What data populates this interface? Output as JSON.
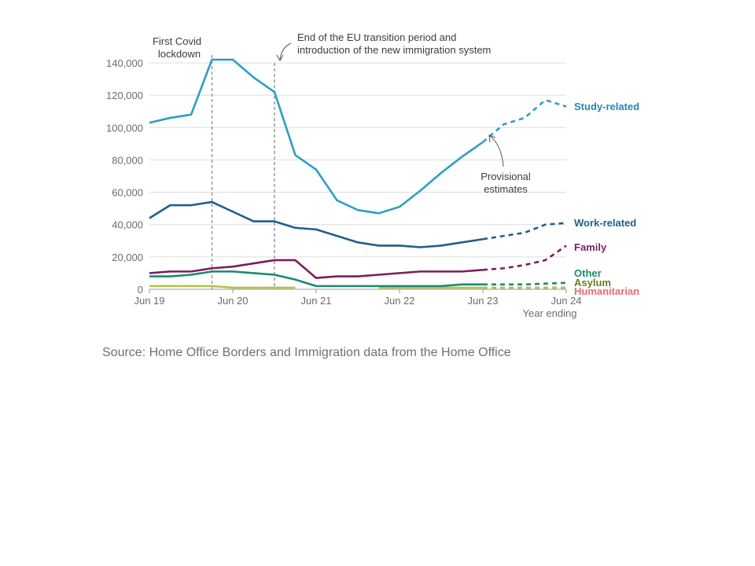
{
  "chart_data": {
    "type": "line",
    "x": [
      "Jun 19",
      "Sep 19",
      "Dec 19",
      "Mar 20",
      "Jun 20",
      "Sep 20",
      "Dec 20",
      "Mar 21",
      "Jun 21",
      "Sep 21",
      "Dec 21",
      "Mar 22",
      "Jun 22",
      "Sep 22",
      "Dec 22",
      "Mar 23",
      "Jun 23",
      "Sep 23",
      "Dec 23",
      "Mar 24",
      "Jun 24"
    ],
    "x_tick_labels": [
      "Jun 19",
      "Jun 20",
      "Jun 21",
      "Jun 22",
      "Jun 23",
      "Jun 24"
    ],
    "xlabel": "Year ending",
    "ylabel": "",
    "ylim": [
      0,
      140000
    ],
    "y_tick_labels": [
      "0",
      "20,000",
      "40,000",
      "60,000",
      "80,000",
      "100,000",
      "120,000",
      "140,000"
    ],
    "grid": "horizontal",
    "series": [
      {
        "name": "Study-related",
        "color": "#2e9ec4",
        "solid_values": [
          103000,
          106000,
          108000,
          142000,
          142000,
          131000,
          122000,
          83000,
          74000,
          55000,
          49000,
          47000,
          51000,
          61000,
          72000,
          82000,
          91000
        ],
        "dashed_values": [
          91000,
          102000,
          106000,
          117000,
          113000
        ]
      },
      {
        "name": "Work-related",
        "color": "#1f5f8b",
        "solid_values": [
          44000,
          52000,
          52000,
          54000,
          48000,
          42000,
          42000,
          38000,
          37000,
          33000,
          29000,
          27000,
          27000,
          26000,
          27000,
          29000,
          31000
        ],
        "dashed_values": [
          31000,
          33000,
          35000,
          40000,
          41000
        ]
      },
      {
        "name": "Family",
        "color": "#7b1e5e",
        "solid_values": [
          10000,
          11000,
          11000,
          13000,
          14000,
          16000,
          18000,
          18000,
          7000,
          8000,
          8000,
          9000,
          10000,
          11000,
          11000,
          11000,
          12000
        ],
        "dashed_values": [
          12000,
          13000,
          15000,
          18000,
          27000
        ]
      },
      {
        "name": "Other",
        "color": "#1a8a6e",
        "solid_values": [
          8000,
          8000,
          9000,
          11000,
          11000,
          10000,
          9000,
          6000,
          2000,
          2000,
          2000,
          2000,
          2000,
          2000,
          2000,
          3000,
          3000
        ],
        "dashed_values": [
          3000,
          3000,
          3000,
          3500,
          4000
        ]
      },
      {
        "name": "Asylum",
        "color": "#b4c44a",
        "solid_values": [
          2000,
          2000,
          2000,
          2000,
          1000,
          1000,
          1000,
          1000,
          null,
          null,
          null,
          1000,
          1000,
          1000,
          1000,
          1000,
          1000
        ],
        "dashed_values": [
          1000,
          1000,
          1000,
          1000,
          1000
        ]
      },
      {
        "name": "Humanitarian",
        "color": "#e86a78",
        "solid_values": [
          null,
          null,
          null,
          null,
          null,
          null,
          null,
          null,
          null,
          null,
          null,
          null,
          null,
          null,
          null,
          null,
          null
        ],
        "dashed_values": [
          1000,
          1000,
          1000,
          1000,
          1000
        ]
      }
    ],
    "annotations": {
      "covid": {
        "line1": "First Covid",
        "line2": "lockdown",
        "x": "Mar 20"
      },
      "eu": {
        "line1": "End of the EU transition period and",
        "line2": "introduction of the new immigration system",
        "x": "Dec 20"
      },
      "provisional": {
        "line1": "Provisional",
        "line2": "estimates"
      }
    }
  },
  "source": "Source: Home Office Borders and Immigration data from the Home Office"
}
